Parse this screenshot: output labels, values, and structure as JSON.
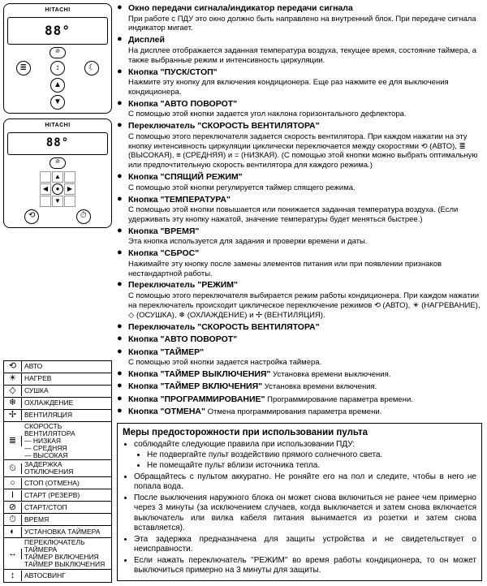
{
  "remote": {
    "brand": "HITACHI",
    "temp_display": "88°"
  },
  "items": [
    {
      "title": "Окно передачи сигнала/индикатор передачи сигнала",
      "desc": "При работе с ПДУ это окно должно быть направлено на внутренний блок. При передаче сигнала индикатор мигает."
    },
    {
      "title": "Дисплей",
      "desc": "На дисплее отображается заданная температура воздуха, текущее время, состояние таймера, а также выбранные режим и интенсивность циркуляции."
    },
    {
      "title": "Кнопка \"ПУСК/СТОП\"",
      "desc": "Нажмите эту кнопку для включения кондиционера. Еще раз нажмите ее для выключения кондиционера."
    },
    {
      "title": "Кнопка \"АВТО ПОВОРОТ\"",
      "desc": "С помощью этой кнопки задается угол наклона горизонтального дефлектора."
    },
    {
      "title": "Переключатель \"СКОРОСТЬ ВЕНТИЛЯТОРА\"",
      "desc": "С помощью этого переключателя задается скорость вентилятора. При каждом нажатии на эту кнопку интенсивность циркуляции циклически переключается между скоростями ⟲ (АВТО), ≣ (ВЫСОКАЯ), ≡ (СРЕДНЯЯ) и = (НИЗКАЯ). (С помощью этой кнопки можно выбрать оптимальную или предпочтительную скорость вентилятора для каждого режима.)"
    },
    {
      "title": "Кнопка \"СПЯЩИЙ РЕЖИМ\"",
      "desc": "С помощью этой кнопки регулируется таймер спящего режима."
    },
    {
      "title": "Кнопка \"ТЕМПЕРАТУРА\"",
      "desc": "С помощью этой кнопки повышается или понижается заданная температура воздуха. (Если удерживать эту кнопку нажатой, значение температуры будет меняться быстрее.)"
    },
    {
      "title": "Кнопка \"ВРЕМЯ\"",
      "desc": "Эта кнопка используется для задания и проверки времени и даты."
    },
    {
      "title": "Кнопка \"СБРОС\"",
      "desc": "Нажимайте эту кнопку после замены элементов питания или при появлении признаков нестандартной работы."
    },
    {
      "title": "Переключатель \"РЕЖИМ\"",
      "desc": "С помощью этого переключателя выбирается режим работы кондиционера. При каждом нажатии на переключатель происходит циклическое переключение режимов ⟲ (АВТО), ☀ (НАГРЕВАНИЕ), ◇ (ОСУШКА), ❄ (ОХЛАЖДЕНИЕ) и ✢ (ВЕНТИЛЯЦИЯ)."
    },
    {
      "title": "Переключатель \"СКОРОСТЬ ВЕНТИЛЯТОРА\"",
      "desc": ""
    },
    {
      "title": "Кнопка \"АВТО ПОВОРОТ\"",
      "desc": ""
    },
    {
      "title": "Кнопка \"ТАЙМЕР\"",
      "desc": "С помощью этой кнопки задается настройка таймера."
    },
    {
      "title": "Кнопка \"ТАЙМЕР ВЫКЛЮЧЕНИЯ\"",
      "inline": "Установка времени выключения."
    },
    {
      "title": "Кнопка \"ТАЙМЕР ВКЛЮЧЕНИЯ\"",
      "inline": "Установка времени включения."
    },
    {
      "title": "Кнопка \"ПРОГРАММИРОВАНИЕ\"",
      "inline": "Программирование параметра времени."
    },
    {
      "title": "Кнопка \"ОТМЕНА\"",
      "inline": "Отмена программирования параметра времени."
    }
  ],
  "legend": [
    {
      "icon": "⟲",
      "label": "АВТО"
    },
    {
      "icon": "☀",
      "label": "НАГРЕВ"
    },
    {
      "icon": "◇",
      "label": "СУШКА"
    },
    {
      "icon": "❄",
      "label": "ОХЛАЖДЕНИЕ"
    },
    {
      "icon": "✢",
      "label": "ВЕНТИЛЯЦИЯ"
    },
    {
      "icon": "≣",
      "label": "СКОРОСТЬ ВЕНТИЛЯТОРА\n— НИЗКАЯ\n— СРЕДНЯЯ\n— ВЫСОКАЯ"
    },
    {
      "icon": "⏲",
      "label": "ЗАДЕРЖКА ОТКЛЮЧЕНИЯ"
    },
    {
      "icon": "○",
      "label": "СТОП (ОТМЕНА)"
    },
    {
      "icon": "I",
      "label": "СТАРТ (РЕЗЕРВ)"
    },
    {
      "icon": "⊘",
      "label": "СТАРТ/СТОП"
    },
    {
      "icon": "⏱",
      "label": "ВРЕМЯ"
    },
    {
      "icon": "◐",
      "label": "УСТАНОВКА ТАЙМЕРА"
    },
    {
      "icon": "↔",
      "label": "ПЕРЕКЛЮЧАТЕЛЬ ТАЙМЕРА\nТАЙМЕР ВКЛЮЧЕНИЯ\nТАЙМЕР ВЫКЛЮЧЕНИЯ"
    },
    {
      "icon": "↕",
      "label": "АВТОСВИНГ"
    }
  ],
  "precautions": {
    "title": "Меры предосторожности при использовании пульта",
    "intro": "соблюдайте следующие правила при использовании ПДУ:",
    "sub": [
      "Не подвергайте пульт воздействию прямого солнечного света.",
      "Не помещайте пульт вблизи источника тепла."
    ],
    "rest": [
      "Обращайтесь с пультом аккуратно. Не роняйте его на пол и следите, чтобы в него не попала вода.",
      "После выключения наружного блока он может снова включиться не ранее чем примерно через 3 минуты (за исключением случаев, когда выключается и затем снова включается выключатель или вилка кабеля питания вынимается из розетки и затем снова вставляется).",
      "Эта задержка предназначена для защиты устройства и не свидетельствует о неисправности.",
      "Если нажать переключатель \"РЕЖИМ\" во время работы кондиционера, то он может выключиться примерно на 3 минуты для защиты."
    ]
  }
}
